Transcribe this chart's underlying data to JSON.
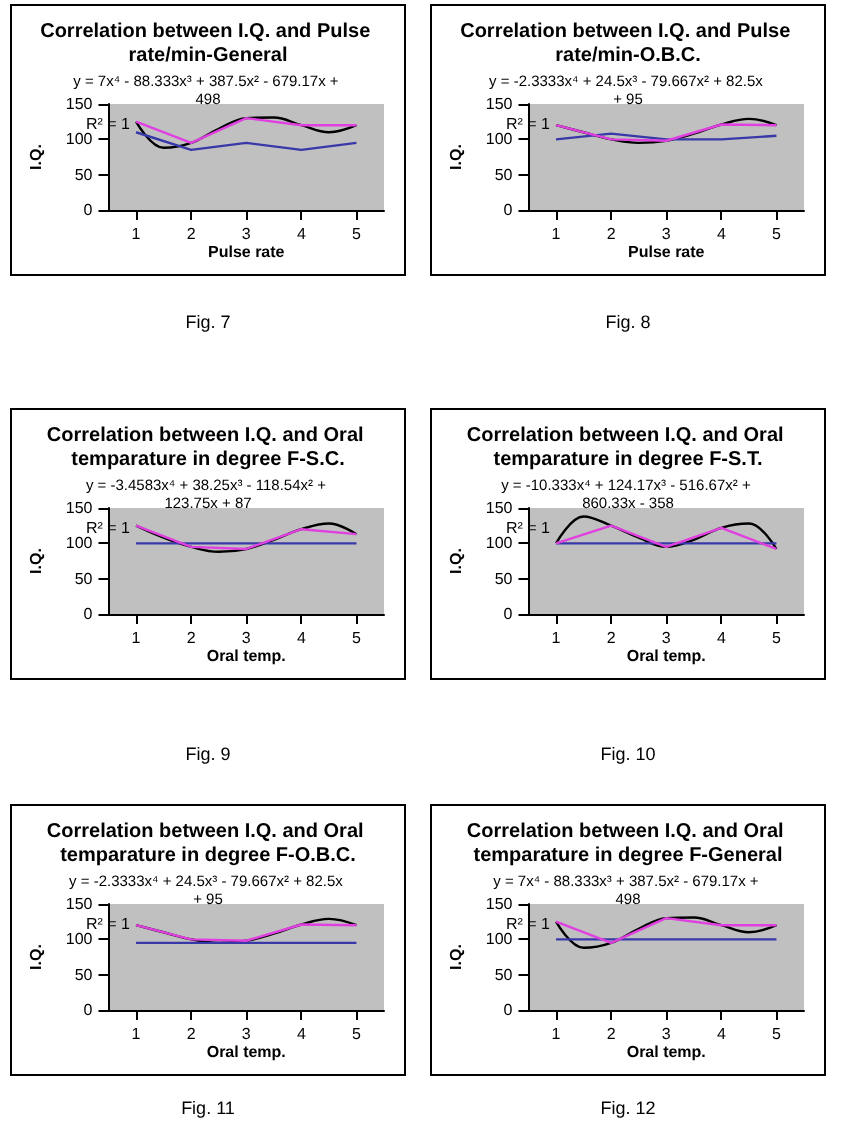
{
  "chart_data": [
    {
      "type": "line",
      "title": "Correlation between I.Q. and Pulse rate/min-General",
      "xlabel": "Pulse rate",
      "ylabel": "I.Q.",
      "x": [
        1,
        2,
        3,
        4,
        5
      ],
      "xlim": [
        0.5,
        5.5
      ],
      "xticks": [
        1,
        2,
        3,
        4,
        5
      ],
      "ylim": [
        0,
        150
      ],
      "yticks": [
        0,
        50,
        100,
        150
      ],
      "grid": false,
      "marker": "none",
      "annotations": [
        "y = 7x⁴ - 88.333x³ + 387.5x² - 679.17x + 498",
        "R² = 1",
        "Fig. 7"
      ],
      "series": [
        {
          "color": "#e040e0",
          "values": [
            125,
            95,
            130,
            120,
            120
          ]
        },
        {
          "color": "#3838a8",
          "values": [
            110,
            85,
            95,
            85,
            95
          ]
        },
        {
          "color": "#000000",
          "x": [
            1,
            1.5,
            2,
            2.5,
            3,
            3.5,
            4,
            4.5,
            5
          ],
          "values": [
            125,
            88,
            95,
            115,
            130,
            131,
            120,
            110,
            120
          ]
        }
      ]
    },
    {
      "type": "line",
      "title": "Correlation between I.Q. and Pulse rate/min-O.B.C.",
      "xlabel": "Pulse rate",
      "ylabel": "I.Q.",
      "x": [
        1,
        2,
        3,
        4,
        5
      ],
      "xlim": [
        0.5,
        5.5
      ],
      "xticks": [
        1,
        2,
        3,
        4,
        5
      ],
      "ylim": [
        0,
        150
      ],
      "yticks": [
        0,
        50,
        100,
        150
      ],
      "grid": false,
      "marker": "none",
      "annotations": [
        "y = -2.3333x⁴ + 24.5x³ - 79.667x² + 82.5x + 95",
        "R² = 1",
        "Fig. 8"
      ],
      "series": [
        {
          "color": "#e040e0",
          "values": [
            120,
            100,
            98,
            121,
            120
          ]
        },
        {
          "color": "#3838a8",
          "values": [
            100,
            108,
            100,
            100,
            105
          ]
        },
        {
          "color": "#000000",
          "x": [
            1,
            1.5,
            2,
            2.5,
            3,
            3.5,
            4,
            4.5,
            5
          ],
          "values": [
            120,
            110,
            100,
            95,
            98,
            108,
            121,
            129,
            120
          ]
        }
      ]
    },
    {
      "type": "line",
      "title": "Correlation between I.Q. and Oral temparature in degree F-S.C.",
      "xlabel": "Oral temp.",
      "ylabel": "I.Q.",
      "x": [
        1,
        2,
        3,
        4,
        5
      ],
      "xlim": [
        0.5,
        5.5
      ],
      "xticks": [
        1,
        2,
        3,
        4,
        5
      ],
      "ylim": [
        0,
        150
      ],
      "yticks": [
        0,
        50,
        100,
        150
      ],
      "grid": false,
      "marker": "none",
      "annotations": [
        "y = -3.4583x⁴ + 38.25x³ - 118.54x² + 123.75x + 87",
        "R² = 1",
        "Fig. 9"
      ],
      "series": [
        {
          "color": "#e040e0",
          "values": [
            125,
            95,
            92,
            120,
            113
          ]
        },
        {
          "color": "#3838a8",
          "values": [
            100,
            100,
            100,
            100,
            100
          ]
        },
        {
          "color": "#000000",
          "x": [
            1,
            1.5,
            2,
            2.5,
            3,
            3.5,
            4,
            4.5,
            5
          ],
          "values": [
            125,
            108,
            95,
            88,
            92,
            105,
            120,
            128,
            113
          ]
        }
      ]
    },
    {
      "type": "line",
      "title": "Correlation between I.Q. and Oral temparature in degree F-S.T.",
      "xlabel": "Oral temp.",
      "ylabel": "I.Q.",
      "x": [
        1,
        2,
        3,
        4,
        5
      ],
      "xlim": [
        0.5,
        5.5
      ],
      "xticks": [
        1,
        2,
        3,
        4,
        5
      ],
      "ylim": [
        0,
        150
      ],
      "yticks": [
        0,
        50,
        100,
        150
      ],
      "grid": false,
      "marker": "none",
      "annotations": [
        "y = -10.333x⁴ + 124.17x³ - 516.67x² + 860.33x - 358",
        "R² = 1",
        "Fig. 10"
      ],
      "series": [
        {
          "color": "#e040e0",
          "values": [
            100,
            125,
            95,
            122,
            92
          ]
        },
        {
          "color": "#3838a8",
          "values": [
            100,
            100,
            100,
            100,
            100
          ]
        },
        {
          "color": "#000000",
          "x": [
            1,
            1.5,
            2,
            2.5,
            3,
            3.5,
            4,
            4.5,
            5
          ],
          "values": [
            100,
            138,
            125,
            108,
            95,
            105,
            122,
            128,
            92
          ]
        }
      ]
    },
    {
      "type": "line",
      "title": "Correlation between I.Q. and Oral temparature in degree F-O.B.C.",
      "xlabel": "Oral temp.",
      "ylabel": "I.Q.",
      "x": [
        1,
        2,
        3,
        4,
        5
      ],
      "xlim": [
        0.5,
        5.5
      ],
      "xticks": [
        1,
        2,
        3,
        4,
        5
      ],
      "ylim": [
        0,
        150
      ],
      "yticks": [
        0,
        50,
        100,
        150
      ],
      "grid": false,
      "marker": "none",
      "annotations": [
        "y = -2.3333x⁴ + 24.5x³ - 79.667x² + 82.5x + 95",
        "R² = 1",
        "Fig. 11"
      ],
      "series": [
        {
          "color": "#e040e0",
          "values": [
            120,
            100,
            98,
            121,
            120
          ]
        },
        {
          "color": "#3838a8",
          "values": [
            95,
            95,
            95,
            95,
            95
          ]
        },
        {
          "color": "#000000",
          "x": [
            1,
            1.5,
            2,
            2.5,
            3,
            3.5,
            4,
            4.5,
            5
          ],
          "values": [
            120,
            110,
            100,
            95,
            98,
            108,
            121,
            129,
            120
          ]
        }
      ]
    },
    {
      "type": "line",
      "title": "Correlation between I.Q. and Oral temparature in degree F-General",
      "xlabel": "Oral temp.",
      "ylabel": "I.Q.",
      "x": [
        1,
        2,
        3,
        4,
        5
      ],
      "xlim": [
        0.5,
        5.5
      ],
      "xticks": [
        1,
        2,
        3,
        4,
        5
      ],
      "ylim": [
        0,
        150
      ],
      "yticks": [
        0,
        50,
        100,
        150
      ],
      "grid": false,
      "marker": "none",
      "annotations": [
        "y = 7x⁴ - 88.333x³ + 387.5x² - 679.17x + 498",
        "R² = 1",
        "Fig. 12"
      ],
      "series": [
        {
          "color": "#e040e0",
          "values": [
            125,
            95,
            130,
            120,
            120
          ]
        },
        {
          "color": "#3838a8",
          "values": [
            100,
            100,
            100,
            100,
            100
          ]
        },
        {
          "color": "#000000",
          "x": [
            1,
            1.5,
            2,
            2.5,
            3,
            3.5,
            4,
            4.5,
            5
          ],
          "values": [
            125,
            88,
            95,
            115,
            130,
            131,
            120,
            110,
            120
          ]
        }
      ]
    }
  ]
}
